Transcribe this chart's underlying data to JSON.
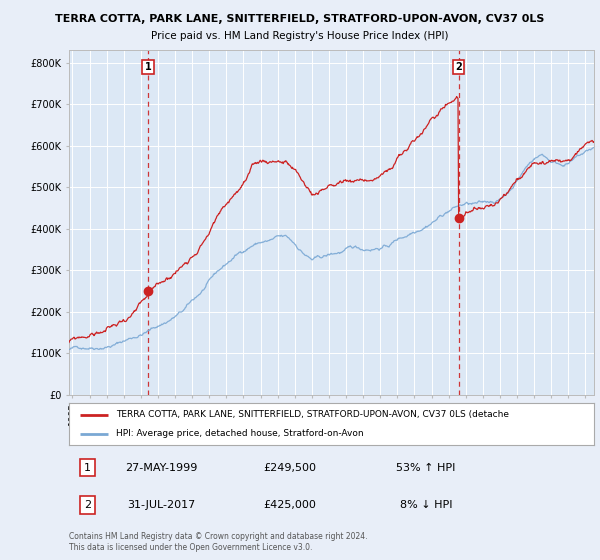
{
  "title1": "TERRA COTTA, PARK LANE, SNITTERFIELD, STRATFORD-UPON-AVON, CV37 0LS",
  "title2": "Price paid vs. HM Land Registry's House Price Index (HPI)",
  "ylabel_ticks": [
    "£0",
    "£100K",
    "£200K",
    "£300K",
    "£400K",
    "£500K",
    "£600K",
    "£700K",
    "£800K"
  ],
  "ytick_vals": [
    0,
    100000,
    200000,
    300000,
    400000,
    500000,
    600000,
    700000,
    800000
  ],
  "ylim": [
    0,
    830000
  ],
  "xlim_start": 1994.8,
  "xlim_end": 2025.5,
  "purchase1_year": 1999.41,
  "purchase1_price": 249500,
  "purchase2_year": 2017.58,
  "purchase2_price": 425000,
  "legend_line1": "TERRA COTTA, PARK LANE, SNITTERFIELD, STRATFORD-UPON-AVON, CV37 0LS (detache",
  "legend_line2": "HPI: Average price, detached house, Stratford-on-Avon",
  "table_row1": [
    "1",
    "27-MAY-1999",
    "£249,500",
    "53% ↑ HPI"
  ],
  "table_row2": [
    "2",
    "31-JUL-2017",
    "£425,000",
    "8% ↓ HPI"
  ],
  "footer1": "Contains HM Land Registry data © Crown copyright and database right 2024.",
  "footer2": "This data is licensed under the Open Government Licence v3.0.",
  "hpi_color": "#7aa8d4",
  "price_color": "#cc2222",
  "background_color": "#e8eef8",
  "plot_bg_color": "#dce8f5",
  "grid_color": "#ffffff",
  "label_fontsize": 7.5,
  "tick_fontsize": 7.0,
  "title_fontsize": 8.0,
  "subtitle_fontsize": 7.5
}
